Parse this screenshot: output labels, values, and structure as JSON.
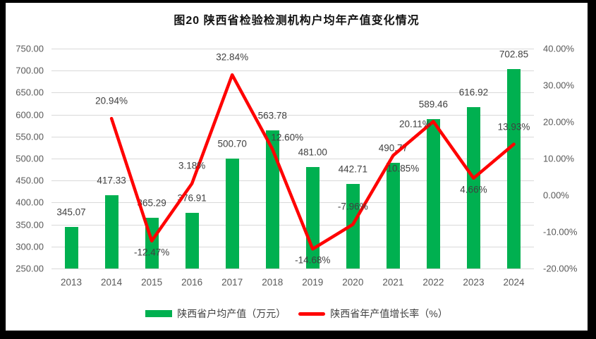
{
  "title": "图20  陕西省检验检测机构户均年产值变化情况",
  "colors": {
    "bar": "#00B050",
    "line": "#FF0000",
    "grid": "#D9D9D9",
    "axis_text": "#595959",
    "label_text": "#404040",
    "background": "#FFFFFF",
    "frame": "#000000"
  },
  "chart_data": {
    "type": "bar",
    "subtype": "bar-line-combo",
    "title": "图20  陕西省检验检测机构户均年产值变化情况",
    "categories": [
      "2013",
      "2014",
      "2015",
      "2016",
      "2017",
      "2018",
      "2019",
      "2020",
      "2021",
      "2022",
      "2023",
      "2024"
    ],
    "series": [
      {
        "name": "陕西省户均产值（万元）",
        "type": "bar",
        "axis": "left",
        "color": "#00B050",
        "values": [
          345.07,
          417.33,
          365.29,
          376.91,
          500.7,
          563.78,
          481.0,
          442.71,
          490.77,
          589.46,
          616.92,
          702.85
        ],
        "labels": [
          "345.07",
          "417.33",
          "365.29",
          "376.91",
          "500.70",
          "563.78",
          "481.00",
          "442.71",
          "490.77",
          "589.46",
          "616.92",
          "702.85"
        ]
      },
      {
        "name": "陕西省年产值增长率（%）",
        "type": "line",
        "axis": "right",
        "color": "#FF0000",
        "values": [
          null,
          20.94,
          -12.47,
          3.18,
          32.84,
          12.6,
          -14.68,
          -7.96,
          10.85,
          20.11,
          4.66,
          13.93
        ],
        "labels": [
          null,
          "20.94%",
          "-12.47%",
          "3.18%",
          "32.84%",
          "12.60%",
          "-14.68%",
          "-7.96%",
          "10.85%",
          "20.11%",
          "4.66%",
          "13.93%"
        ],
        "label_positions": [
          null,
          "above",
          "below",
          "above",
          "above",
          "above-right",
          "below",
          "above",
          "below-right",
          "left",
          "below",
          "above"
        ]
      }
    ],
    "left_axis": {
      "min": 250,
      "max": 750,
      "step": 50,
      "tick_labels": [
        "750.00",
        "700.00",
        "650.00",
        "600.00",
        "550.00",
        "500.00",
        "450.00",
        "400.00",
        "350.00",
        "300.00",
        "250.00"
      ]
    },
    "right_axis": {
      "min": -20,
      "max": 40,
      "step": 10,
      "tick_labels": [
        "40.00%",
        "30.00%",
        "20.00%",
        "10.00%",
        "0.00%",
        "-10.00%",
        "-20.00%"
      ]
    },
    "grid": true,
    "legend_position": "bottom"
  }
}
